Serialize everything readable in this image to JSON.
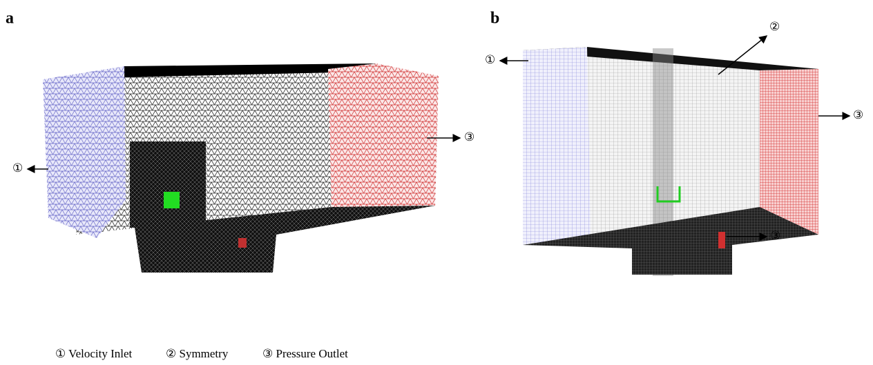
{
  "panels": [
    {
      "label": "a",
      "callouts": [
        "①",
        "③"
      ]
    },
    {
      "label": "b",
      "callouts": [
        "①",
        "②",
        "③",
        "③"
      ]
    }
  ],
  "legend": [
    "① Velocity Inlet",
    "② Symmetry",
    "③ Pressure Outlet"
  ]
}
